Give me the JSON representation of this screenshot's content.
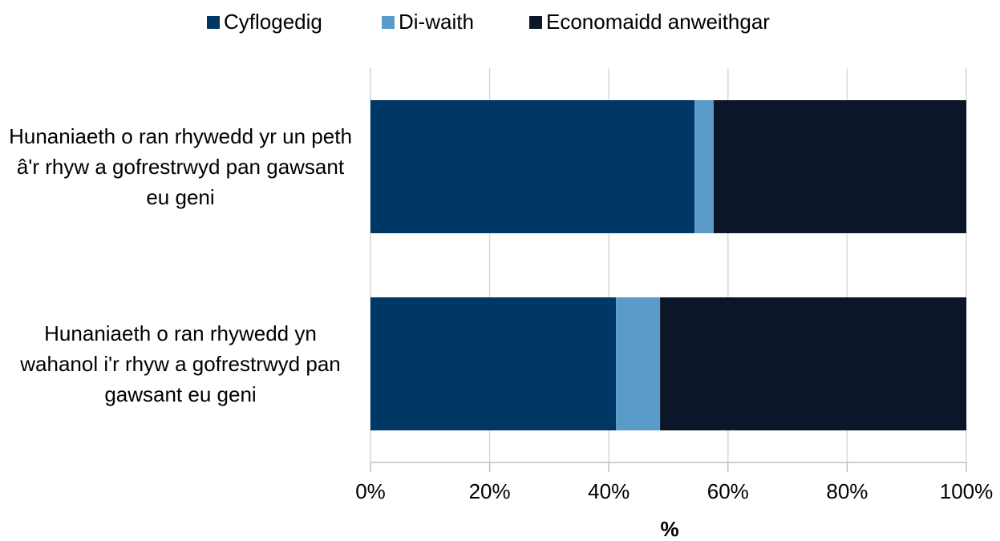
{
  "chart_data": {
    "type": "stacked-barh",
    "categories": [
      "Hunaniaeth o ran rhywedd yr un peth â'r rhyw a gofrestrwyd pan gawsant eu geni",
      "Hunaniaeth o ran rhywedd yn wahanol i'r rhyw a gofrestrwyd pan gawsant eu geni"
    ],
    "series": [
      {
        "name": "Cyflogedig",
        "color": "#003865",
        "values": [
          54.4,
          41.2
        ]
      },
      {
        "name": "Di-waith",
        "color": "#5b9bc9",
        "values": [
          3.2,
          7.4
        ]
      },
      {
        "name": "Economaidd anweithgar",
        "color": "#0b1728",
        "values": [
          42.4,
          51.4
        ]
      }
    ],
    "xlabel": "%",
    "xlim": [
      0,
      100
    ],
    "xticks": [
      {
        "value": 0,
        "label": "0%"
      },
      {
        "value": 20,
        "label": "20%"
      },
      {
        "value": 40,
        "label": "40%"
      },
      {
        "value": 60,
        "label": "60%"
      },
      {
        "value": 80,
        "label": "80%"
      },
      {
        "value": 100,
        "label": "100%"
      }
    ],
    "grid": true,
    "legend": "top"
  }
}
